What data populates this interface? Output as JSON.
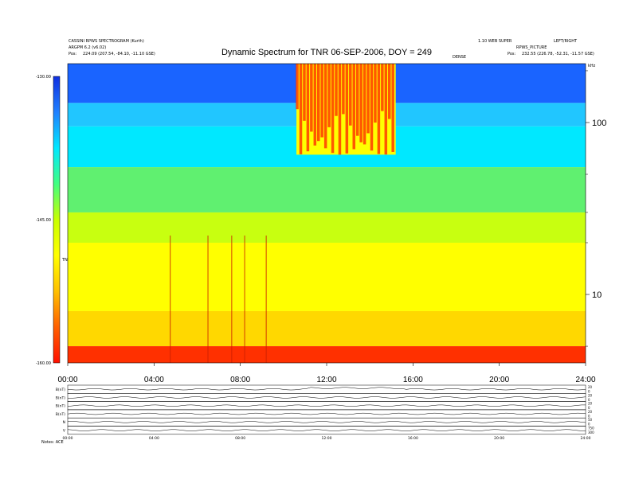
{
  "header": {
    "left_line1": "CASSINI RPWS SPECTROGRAM (Kurth)",
    "left_line2": "ARGPM 6.2 (v6.02)",
    "left_pos": "224.09 (207.54, -84.10, -11.10 GSE)",
    "right_line1": "1.10 WEB SUPER",
    "right_line2": "RPWS_PICTURE",
    "right_pos": "232.55 (226.78, -52.31, -11.57 GSE)",
    "right_corner": "LEFT/RIGHT",
    "center_tag": "DENSE"
  },
  "pos_label": "Pos:",
  "kHz_label": "kHz",
  "chart_data": {
    "type": "heatmap",
    "title": "Dynamic Spectrum for TNR 06-SEP-2006, DOY = 249",
    "x_range_hours": [
      0,
      24
    ],
    "x_ticks": [
      "00:00",
      "04:00",
      "08:00",
      "12:00",
      "16:00",
      "20:00",
      "24:00"
    ],
    "y_scale": "log",
    "y_range_khz": [
      4,
      220
    ],
    "y_ticks": [
      "100",
      "10"
    ],
    "y_tick_values": [
      100,
      10
    ],
    "colorbar": {
      "label": "TNR",
      "range_db": [
        -160,
        -130
      ],
      "ticks": [
        "-130.00",
        "-145.00",
        "-160.00"
      ],
      "tick_values": [
        -130,
        -145,
        -160
      ],
      "colors": [
        "#1030e0",
        "#2080ff",
        "#00e8ff",
        "#40ff80",
        "#c8ff00",
        "#ffff00",
        "#ffc000",
        "#ff6000",
        "#ff1000"
      ]
    },
    "bands": [
      {
        "f_low": 130,
        "f_high": 220,
        "color": "#1a64ff"
      },
      {
        "f_low": 95,
        "f_high": 130,
        "color": "#21c6ff"
      },
      {
        "f_low": 55,
        "f_high": 95,
        "color": "#00e8ff"
      },
      {
        "f_low": 30,
        "f_high": 55,
        "color": "#60f070"
      },
      {
        "f_low": 20,
        "f_high": 30,
        "color": "#c8ff10"
      },
      {
        "f_low": 8,
        "f_high": 20,
        "color": "#ffff00"
      },
      {
        "f_low": 5,
        "f_high": 8,
        "color": "#ffd800"
      },
      {
        "f_low": 4,
        "f_high": 5,
        "color": "#ff3000"
      }
    ],
    "bursts": [
      {
        "t_start": 10.6,
        "t_end": 15.2,
        "f_low": 65,
        "f_high": 220,
        "color": "#ff2000"
      },
      {
        "t_start": 10.6,
        "t_end": 15.2,
        "f_low": 65,
        "f_high": 220,
        "color": "#ffff00"
      }
    ],
    "vertical_features_hours": [
      4.75,
      6.5,
      7.6,
      8.2,
      9.2
    ]
  },
  "panels": {
    "labels": [
      "B(nT)",
      "B(nT)",
      "B(nT)",
      "B(nT)",
      "N",
      "V"
    ],
    "right_ticks": [
      [
        "20",
        "0"
      ],
      [
        "20",
        "0"
      ],
      [
        "20",
        "0"
      ],
      [
        "20",
        "0"
      ],
      [
        "50",
        "0"
      ],
      [
        "750",
        "300"
      ]
    ],
    "x_ticks": [
      "00:00",
      "04:00",
      "08:00",
      "12:00",
      "16:00",
      "20:00",
      "24:00"
    ],
    "footer": "Notes: ACE"
  }
}
